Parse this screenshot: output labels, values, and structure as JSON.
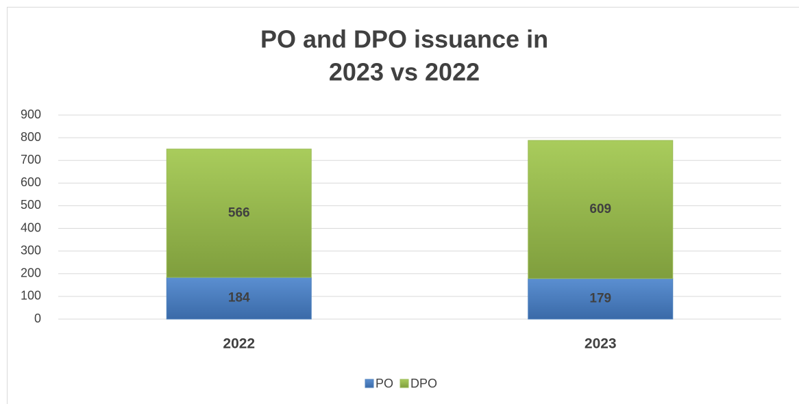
{
  "chart_data": {
    "type": "stacked_bar",
    "title": [
      "PO and DPO issuance in",
      "2023 vs 2022"
    ],
    "categories": [
      "2022",
      "2023"
    ],
    "series": [
      {
        "name": "PO",
        "color": "#4f81bd",
        "values": [
          184,
          179
        ]
      },
      {
        "name": "DPO",
        "color": "#9bbb59",
        "values": [
          566,
          609
        ]
      }
    ],
    "ylim": [
      0,
      900
    ],
    "yticks": [
      0,
      100,
      200,
      300,
      400,
      500,
      600,
      700,
      800,
      900
    ],
    "grid": true,
    "legend": "bottom"
  }
}
